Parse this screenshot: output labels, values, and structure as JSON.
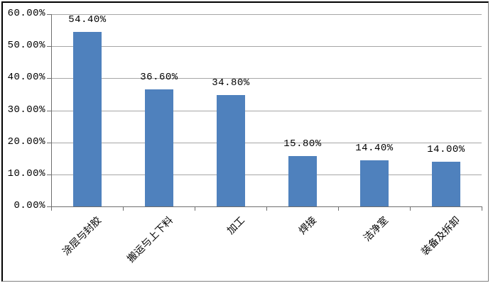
{
  "chart_data": {
    "type": "bar",
    "title": "",
    "xlabel": "",
    "ylabel": "",
    "categories": [
      "涂层与封胶",
      "搬运与上下料",
      "加工",
      "焊接",
      "洁净室",
      "装备及拆卸"
    ],
    "values": [
      54.4,
      36.6,
      34.8,
      15.8,
      14.4,
      14.0
    ],
    "data_labels": [
      "54.40%",
      "36.60%",
      "34.80%",
      "15.80%",
      "14.40%",
      "14.00%"
    ],
    "yticks": [
      "0.00%",
      "10.00%",
      "20.00%",
      "30.00%",
      "40.00%",
      "50.00%",
      "60.00%"
    ],
    "ylim": [
      0,
      60
    ],
    "grid": true,
    "legend_position": "none",
    "bar_color": "#4f81bd",
    "gridline_color": "#a6a6a6",
    "axis_color": "#6e6e6e",
    "background_color": "#ffffff"
  }
}
